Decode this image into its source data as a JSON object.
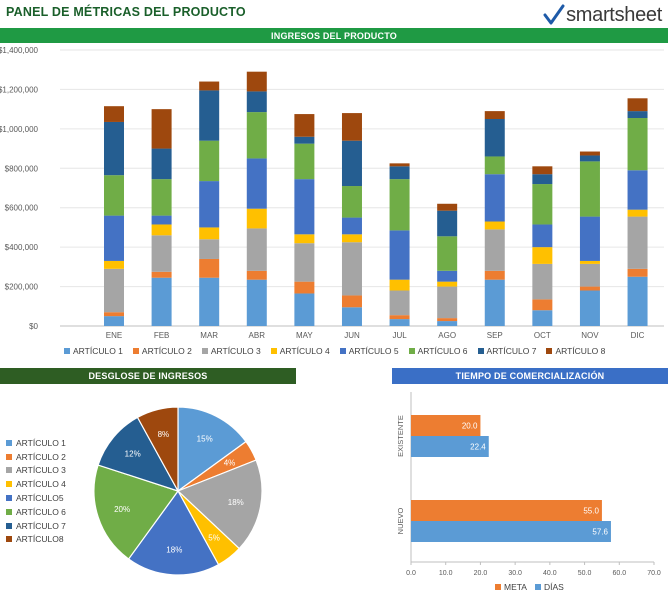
{
  "page": {
    "title": "PANEL DE MÉTRICAS DEL PRODUCTO",
    "logo_text": "smartsheet"
  },
  "chart_data": [
    {
      "type": "bar",
      "stacked": true,
      "title": "INGRESOS DEL PRODUCTO",
      "categories": [
        "ENE",
        "FEB",
        "MAR",
        "ABR",
        "MAY",
        "JUN",
        "JUL",
        "AGO",
        "SEP",
        "OCT",
        "NOV",
        "DIC"
      ],
      "ylim": [
        0,
        1400000
      ],
      "yticks": [
        0,
        200000,
        400000,
        600000,
        800000,
        1000000,
        1200000,
        1400000
      ],
      "ytick_labels": [
        "$0",
        "$200,000",
        "$400,000",
        "$600,000",
        "$800,000",
        "$1,000,000",
        "$1,200,000",
        "$1,400,000"
      ],
      "grid": true,
      "legend_position": "bottom",
      "series": [
        {
          "name": "ARTÍCULO 1",
          "color": "#5b9bd5",
          "values": [
            50000,
            245000,
            245000,
            235000,
            165000,
            95000,
            35000,
            25000,
            235000,
            80000,
            180000,
            250000
          ]
        },
        {
          "name": "ARTÍCULO 2",
          "color": "#ed7d31",
          "values": [
            20000,
            30000,
            95000,
            45000,
            60000,
            60000,
            20000,
            15000,
            45000,
            55000,
            20000,
            40000
          ]
        },
        {
          "name": "ARTÍCULO 3",
          "color": "#a5a5a5",
          "values": [
            220000,
            185000,
            100000,
            215000,
            195000,
            270000,
            125000,
            160000,
            210000,
            180000,
            115000,
            265000
          ]
        },
        {
          "name": "ARTÍCULO 4",
          "color": "#ffc000",
          "values": [
            40000,
            55000,
            60000,
            100000,
            45000,
            40000,
            55000,
            25000,
            40000,
            85000,
            15000,
            35000
          ]
        },
        {
          "name": "ARTÍCULO 5",
          "color": "#4472c4",
          "values": [
            230000,
            45000,
            235000,
            255000,
            280000,
            85000,
            250000,
            55000,
            240000,
            115000,
            225000,
            200000
          ]
        },
        {
          "name": "ARTÍCULO 6",
          "color": "#70ad47",
          "values": [
            205000,
            185000,
            205000,
            235000,
            180000,
            160000,
            260000,
            175000,
            90000,
            205000,
            280000,
            265000
          ]
        },
        {
          "name": "ARTÍCULO 7",
          "color": "#255e91",
          "values": [
            270000,
            155000,
            255000,
            105000,
            35000,
            230000,
            65000,
            130000,
            190000,
            50000,
            30000,
            35000
          ]
        },
        {
          "name": "ARTÍCULO 8",
          "color": "#9e480e",
          "values": [
            80000,
            200000,
            45000,
            100000,
            115000,
            140000,
            15000,
            35000,
            40000,
            40000,
            20000,
            65000
          ]
        }
      ]
    },
    {
      "type": "pie",
      "title": "DESGLOSE DE INGRESOS",
      "labels": [
        "ARTÍCULO 1",
        "ARTÍCULO 2",
        "ARTÍCULO 3",
        "ARTÍCULO 4",
        "ARTÍCULO5",
        "ARTÍCULO 6",
        "ARTÍCULO 7",
        "ARTÍCULO8"
      ],
      "values": [
        15,
        4,
        18,
        5,
        18,
        20,
        12,
        8
      ],
      "value_labels": [
        "15%",
        "4%",
        "18%",
        "5%",
        "18%",
        "20%",
        "12%",
        "8%"
      ],
      "colors": [
        "#5b9bd5",
        "#ed7d31",
        "#a5a5a5",
        "#ffc000",
        "#4472c4",
        "#70ad47",
        "#255e91",
        "#9e480e"
      ],
      "legend_position": "left"
    },
    {
      "type": "bar",
      "orientation": "horizontal",
      "title": "TIEMPO DE COMERCIALIZACIÓN",
      "categories": [
        "EXISTENTE",
        "NUEVO"
      ],
      "xlim": [
        0,
        70
      ],
      "xticks": [
        0,
        10,
        20,
        30,
        40,
        50,
        60,
        70
      ],
      "xtick_labels": [
        "0.0",
        "10.0",
        "20.0",
        "30.0",
        "40.0",
        "50.0",
        "60.0",
        "70.0"
      ],
      "legend_position": "bottom",
      "series": [
        {
          "name": "META",
          "color": "#ed7d31",
          "values": [
            20.0,
            55.0
          ],
          "value_labels": [
            "20.0",
            "55.0"
          ]
        },
        {
          "name": "DÍAS",
          "color": "#5b9bd5",
          "values": [
            22.4,
            57.6
          ],
          "value_labels": [
            "22.4",
            "57.6"
          ]
        }
      ]
    }
  ]
}
